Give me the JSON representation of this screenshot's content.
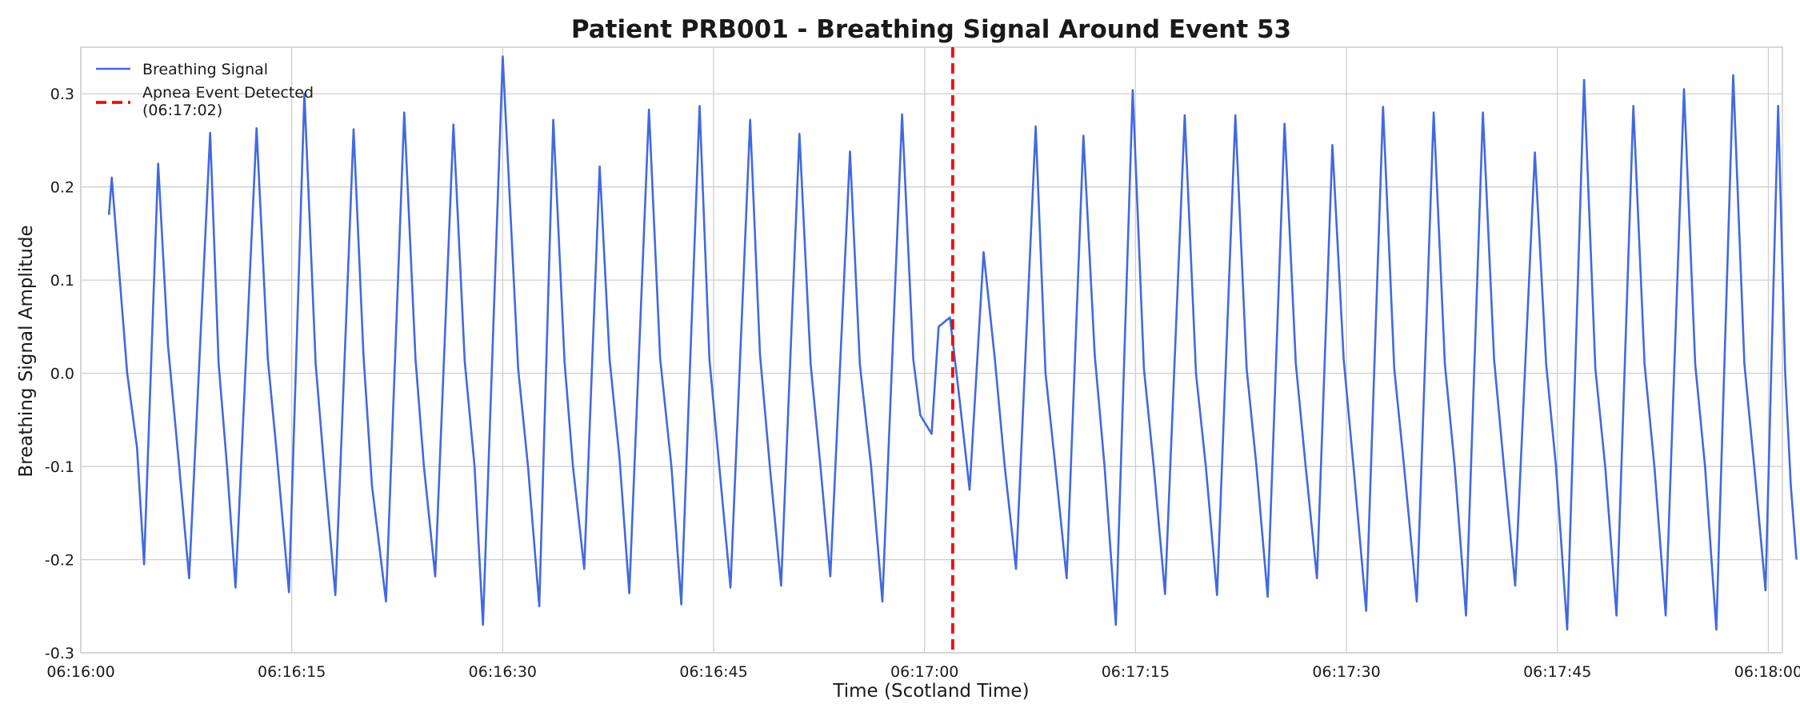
{
  "chart_data": {
    "type": "line",
    "title": "Patient PRB001 - Breathing Signal Around Event 53",
    "xlabel": "Time (Scotland Time)",
    "ylabel": "Breathing Signal Amplitude",
    "xlim": [
      "06:16:00",
      "06:18:01"
    ],
    "ylim": [
      -0.3,
      0.35
    ],
    "x_ticks": [
      "06:16:00",
      "06:16:15",
      "06:16:30",
      "06:16:45",
      "06:17:00",
      "06:17:15",
      "06:17:30",
      "06:17:45",
      "06:18:00"
    ],
    "y_ticks": [
      "-0.3",
      "-0.2",
      "-0.1",
      "0.0",
      "0.1",
      "0.2",
      "0.3"
    ],
    "y_tick_values": [
      -0.3,
      -0.2,
      -0.1,
      0.0,
      0.1,
      0.2,
      0.3
    ],
    "grid": true,
    "legend_position": "top-left",
    "series": [
      {
        "name": "Breathing Signal",
        "color": "#4169e1",
        "style": "solid",
        "points": [
          [
            "06:16:02.0",
            0.17
          ],
          [
            "06:16:02.2",
            0.21
          ],
          [
            "06:16:03.3",
            0.0
          ],
          [
            "06:16:04.0",
            -0.08
          ],
          [
            "06:16:04.5",
            -0.205
          ],
          [
            "06:16:05.5",
            0.225
          ],
          [
            "06:16:06.2",
            0.03
          ],
          [
            "06:16:07.0",
            -0.1
          ],
          [
            "06:16:07.7",
            -0.22
          ],
          [
            "06:16:09.2",
            0.258
          ],
          [
            "06:16:09.8",
            0.01
          ],
          [
            "06:16:10.4",
            -0.1
          ],
          [
            "06:16:11.0",
            -0.23
          ],
          [
            "06:16:12.5",
            0.263
          ],
          [
            "06:16:13.3",
            0.015
          ],
          [
            "06:16:13.9",
            -0.08
          ],
          [
            "06:16:14.8",
            -0.235
          ],
          [
            "06:16:15.9",
            0.3
          ],
          [
            "06:16:16.7",
            0.01
          ],
          [
            "06:16:17.3",
            -0.1
          ],
          [
            "06:16:18.1",
            -0.238
          ],
          [
            "06:16:19.4",
            0.262
          ],
          [
            "06:16:20.1",
            0.02
          ],
          [
            "06:16:20.7",
            -0.12
          ],
          [
            "06:16:21.7",
            -0.245
          ],
          [
            "06:16:23.0",
            0.28
          ],
          [
            "06:16:23.8",
            0.015
          ],
          [
            "06:16:24.4",
            -0.1
          ],
          [
            "06:16:25.2",
            -0.218
          ],
          [
            "06:16:26.5",
            0.267
          ],
          [
            "06:16:27.3",
            0.013
          ],
          [
            "06:16:28.0",
            -0.1
          ],
          [
            "06:16:28.6",
            -0.27
          ],
          [
            "06:16:30.0",
            0.34
          ],
          [
            "06:16:31.1",
            0.005
          ],
          [
            "06:16:31.8",
            -0.1
          ],
          [
            "06:16:32.6",
            -0.25
          ],
          [
            "06:16:33.6",
            0.272
          ],
          [
            "06:16:34.4",
            0.012
          ],
          [
            "06:16:35.0",
            -0.1
          ],
          [
            "06:16:35.8",
            -0.21
          ],
          [
            "06:16:36.9",
            0.222
          ],
          [
            "06:16:37.6",
            0.015
          ],
          [
            "06:16:38.3",
            -0.09
          ],
          [
            "06:16:39.0",
            -0.236
          ],
          [
            "06:16:40.4",
            0.283
          ],
          [
            "06:16:41.2",
            0.016
          ],
          [
            "06:16:42.0",
            -0.1
          ],
          [
            "06:16:42.7",
            -0.248
          ],
          [
            "06:16:44.0",
            0.287
          ],
          [
            "06:16:44.7",
            0.015
          ],
          [
            "06:16:45.4",
            -0.1
          ],
          [
            "06:16:46.2",
            -0.23
          ],
          [
            "06:16:47.6",
            0.272
          ],
          [
            "06:16:48.3",
            0.02
          ],
          [
            "06:16:49.0",
            -0.1
          ],
          [
            "06:16:49.8",
            -0.228
          ],
          [
            "06:16:51.1",
            0.257
          ],
          [
            "06:16:51.9",
            0.01
          ],
          [
            "06:16:52.6",
            -0.1
          ],
          [
            "06:16:53.3",
            -0.218
          ],
          [
            "06:16:54.7",
            0.238
          ],
          [
            "06:16:55.4",
            0.01
          ],
          [
            "06:16:56.2",
            -0.1
          ],
          [
            "06:16:57.0",
            -0.245
          ],
          [
            "06:16:58.4",
            0.278
          ],
          [
            "06:16:59.2",
            0.015
          ],
          [
            "06:16:59.7",
            -0.045
          ],
          [
            "06:17:00.5",
            -0.065
          ],
          [
            "06:17:01.0",
            0.05
          ],
          [
            "06:17:01.8",
            0.06
          ],
          [
            "06:17:02.5",
            -0.03
          ],
          [
            "06:17:03.2",
            -0.125
          ],
          [
            "06:17:04.2",
            0.13
          ],
          [
            "06:17:05.0",
            0.015
          ],
          [
            "06:17:05.7",
            -0.1
          ],
          [
            "06:17:06.5",
            -0.21
          ],
          [
            "06:17:07.9",
            0.265
          ],
          [
            "06:17:08.6",
            0.0
          ],
          [
            "06:17:09.3",
            -0.1
          ],
          [
            "06:17:10.1",
            -0.22
          ],
          [
            "06:17:11.3",
            0.255
          ],
          [
            "06:17:12.1",
            0.02
          ],
          [
            "06:17:12.8",
            -0.1
          ],
          [
            "06:17:13.6",
            -0.27
          ],
          [
            "06:17:14.8",
            0.304
          ],
          [
            "06:17:15.6",
            0.005
          ],
          [
            "06:17:16.3",
            -0.1
          ],
          [
            "06:17:17.1",
            -0.237
          ],
          [
            "06:17:18.5",
            0.277
          ],
          [
            "06:17:19.3",
            0.0
          ],
          [
            "06:17:20.0",
            -0.1
          ],
          [
            "06:17:20.8",
            -0.238
          ],
          [
            "06:17:22.1",
            0.277
          ],
          [
            "06:17:22.9",
            0.005
          ],
          [
            "06:17:23.6",
            -0.1
          ],
          [
            "06:17:24.4",
            -0.24
          ],
          [
            "06:17:25.6",
            0.268
          ],
          [
            "06:17:26.4",
            0.01
          ],
          [
            "06:17:27.1",
            -0.1
          ],
          [
            "06:17:27.9",
            -0.22
          ],
          [
            "06:17:29.0",
            0.245
          ],
          [
            "06:17:29.8",
            0.015
          ],
          [
            "06:17:30.5",
            -0.1
          ],
          [
            "06:17:31.4",
            -0.255
          ],
          [
            "06:17:32.6",
            0.286
          ],
          [
            "06:17:33.4",
            0.005
          ],
          [
            "06:17:34.1",
            -0.1
          ],
          [
            "06:17:35.0",
            -0.245
          ],
          [
            "06:17:36.2",
            0.28
          ],
          [
            "06:17:37.0",
            0.01
          ],
          [
            "06:17:37.7",
            -0.1
          ],
          [
            "06:17:38.5",
            -0.26
          ],
          [
            "06:17:39.7",
            0.28
          ],
          [
            "06:17:40.5",
            0.015
          ],
          [
            "06:17:41.2",
            -0.1
          ],
          [
            "06:17:42.0",
            -0.228
          ],
          [
            "06:17:43.4",
            0.237
          ],
          [
            "06:17:44.2",
            0.01
          ],
          [
            "06:17:44.9",
            -0.1
          ],
          [
            "06:17:45.7",
            -0.275
          ],
          [
            "06:17:46.9",
            0.315
          ],
          [
            "06:17:47.7",
            0.005
          ],
          [
            "06:17:48.4",
            -0.1
          ],
          [
            "06:17:49.2",
            -0.26
          ],
          [
            "06:17:50.4",
            0.287
          ],
          [
            "06:17:51.2",
            0.01
          ],
          [
            "06:17:51.9",
            -0.1
          ],
          [
            "06:17:52.7",
            -0.26
          ],
          [
            "06:17:54.0",
            0.305
          ],
          [
            "06:17:54.8",
            0.01
          ],
          [
            "06:17:55.5",
            -0.1
          ],
          [
            "06:17:56.3",
            -0.275
          ],
          [
            "06:17:57.5",
            0.32
          ],
          [
            "06:17:58.3",
            0.01
          ],
          [
            "06:17:59.0",
            -0.1
          ],
          [
            "06:17:59.8",
            -0.233
          ],
          [
            "06:18:00.7",
            0.287
          ],
          [
            "06:18:01.2",
            0.0
          ],
          [
            "06:18:01.6",
            -0.12
          ],
          [
            "06:18:02.0",
            -0.2
          ]
        ]
      }
    ],
    "event_line": {
      "name": "Apnea Event Detected\n(06:17:02)",
      "x": "06:17:02",
      "color": "#ff0000",
      "style": "dashed"
    }
  }
}
